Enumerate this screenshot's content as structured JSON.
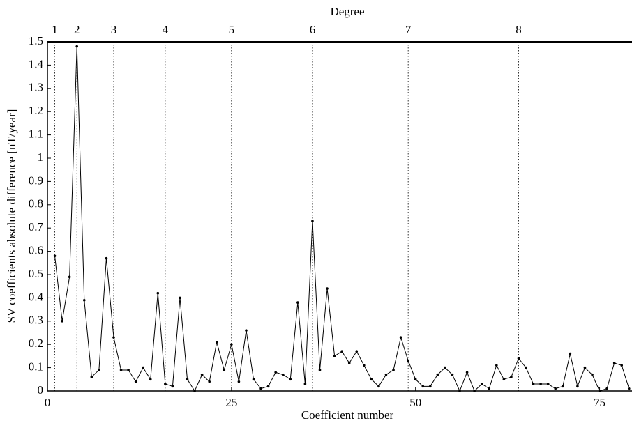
{
  "chart_data": {
    "type": "line",
    "x_label": "Coefficient number",
    "y_label": "SV coefficients absolute difference [nT/year]",
    "top_axis": {
      "label": "Degree",
      "ticks": [
        1,
        {
          "value": 4,
          "label": "2"
        },
        {
          "value": 9,
          "label": "3"
        },
        {
          "value": 16,
          "label": "4"
        },
        {
          "value": 25,
          "label": "5"
        },
        {
          "value": 36,
          "label": "6"
        },
        {
          "value": 49,
          "label": "7"
        },
        {
          "value": 64,
          "label": "8"
        }
      ]
    },
    "x": [
      1,
      2,
      3,
      4,
      5,
      6,
      7,
      8,
      9,
      10,
      11,
      12,
      13,
      14,
      15,
      16,
      17,
      18,
      19,
      20,
      21,
      22,
      23,
      24,
      25,
      26,
      27,
      28,
      29,
      30,
      31,
      32,
      33,
      34,
      35,
      36,
      37,
      38,
      39,
      40,
      41,
      42,
      43,
      44,
      45,
      46,
      47,
      48,
      49,
      50,
      51,
      52,
      53,
      54,
      55,
      56,
      57,
      58,
      59,
      60,
      61,
      62,
      63,
      64,
      65,
      66,
      67,
      68,
      69,
      70,
      71,
      72,
      73,
      74,
      75,
      76,
      77,
      78,
      79
    ],
    "series": [
      {
        "color": "#000000",
        "values": [
          0.58,
          0.3,
          0.49,
          1.48,
          0.39,
          0.06,
          0.09,
          0.57,
          0.23,
          0.09,
          0.09,
          0.04,
          0.1,
          0.05,
          0.42,
          0.03,
          0.02,
          0.4,
          0.05,
          0.0,
          0.07,
          0.04,
          0.21,
          0.09,
          0.2,
          0.04,
          0.26,
          0.05,
          0.01,
          0.02,
          0.08,
          0.07,
          0.05,
          0.38,
          0.03,
          0.73,
          0.09,
          0.44,
          0.15,
          0.17,
          0.12,
          0.17,
          0.11,
          0.05,
          0.02,
          0.07,
          0.09,
          0.23,
          0.13,
          0.05,
          0.02,
          0.02,
          0.07,
          0.1,
          0.07,
          0.0,
          0.08,
          0.0,
          0.03,
          0.01,
          0.11,
          0.05,
          0.06,
          0.14,
          0.1,
          0.03,
          0.03,
          0.03,
          0.01,
          0.02,
          0.16,
          0.02,
          0.1,
          0.07,
          0.0,
          0.01,
          0.12,
          0.11,
          0.01
        ]
      }
    ],
    "xlim": [
      0,
      79.4
    ],
    "ylim": [
      0,
      1.5
    ],
    "xticks": [
      0,
      25,
      50,
      75
    ],
    "yticks": [
      0,
      0.1,
      0.2,
      0.3,
      0.4,
      0.5,
      0.6,
      0.7,
      0.8,
      0.9,
      1,
      1.1,
      1.2,
      1.3,
      1.4,
      1.5
    ]
  }
}
